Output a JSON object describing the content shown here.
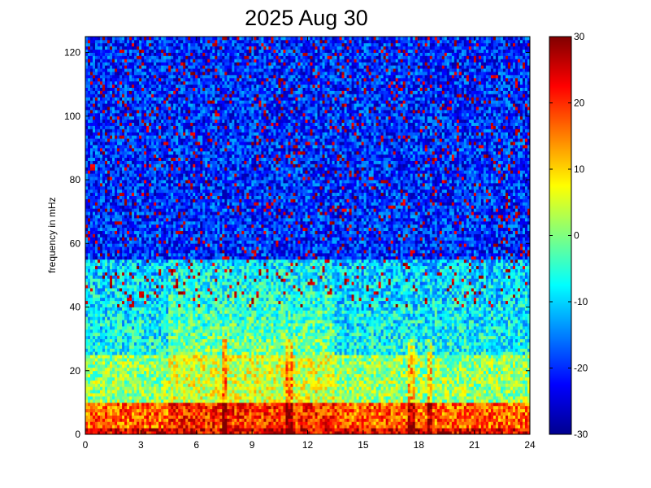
{
  "chart_data": {
    "type": "heatmap",
    "title": "2025 Aug 30",
    "xlabel": "",
    "ylabel": "frequency in mHz",
    "xlim": [
      0,
      24
    ],
    "ylim": [
      0,
      125
    ],
    "x_ticks": [
      "0",
      "3",
      "6",
      "9",
      "12",
      "15",
      "18",
      "21",
      "24"
    ],
    "y_ticks": [
      "0",
      "20",
      "40",
      "60",
      "80",
      "100",
      "120"
    ],
    "colorbar": {
      "range": [
        -30,
        30
      ],
      "ticks": [
        "-30",
        "-20",
        "-10",
        "0",
        "10",
        "20",
        "30"
      ],
      "colormap": "jet"
    },
    "grid": false,
    "features": {
      "low_band_strong": {
        "y_max": 10,
        "value": 22
      },
      "day_elevated": {
        "x_start": 4.5,
        "x_end": 13.5,
        "y_top": 55,
        "value": 5
      },
      "vertical_streaks": [
        7.5,
        11,
        17.6,
        18.6
      ]
    }
  }
}
